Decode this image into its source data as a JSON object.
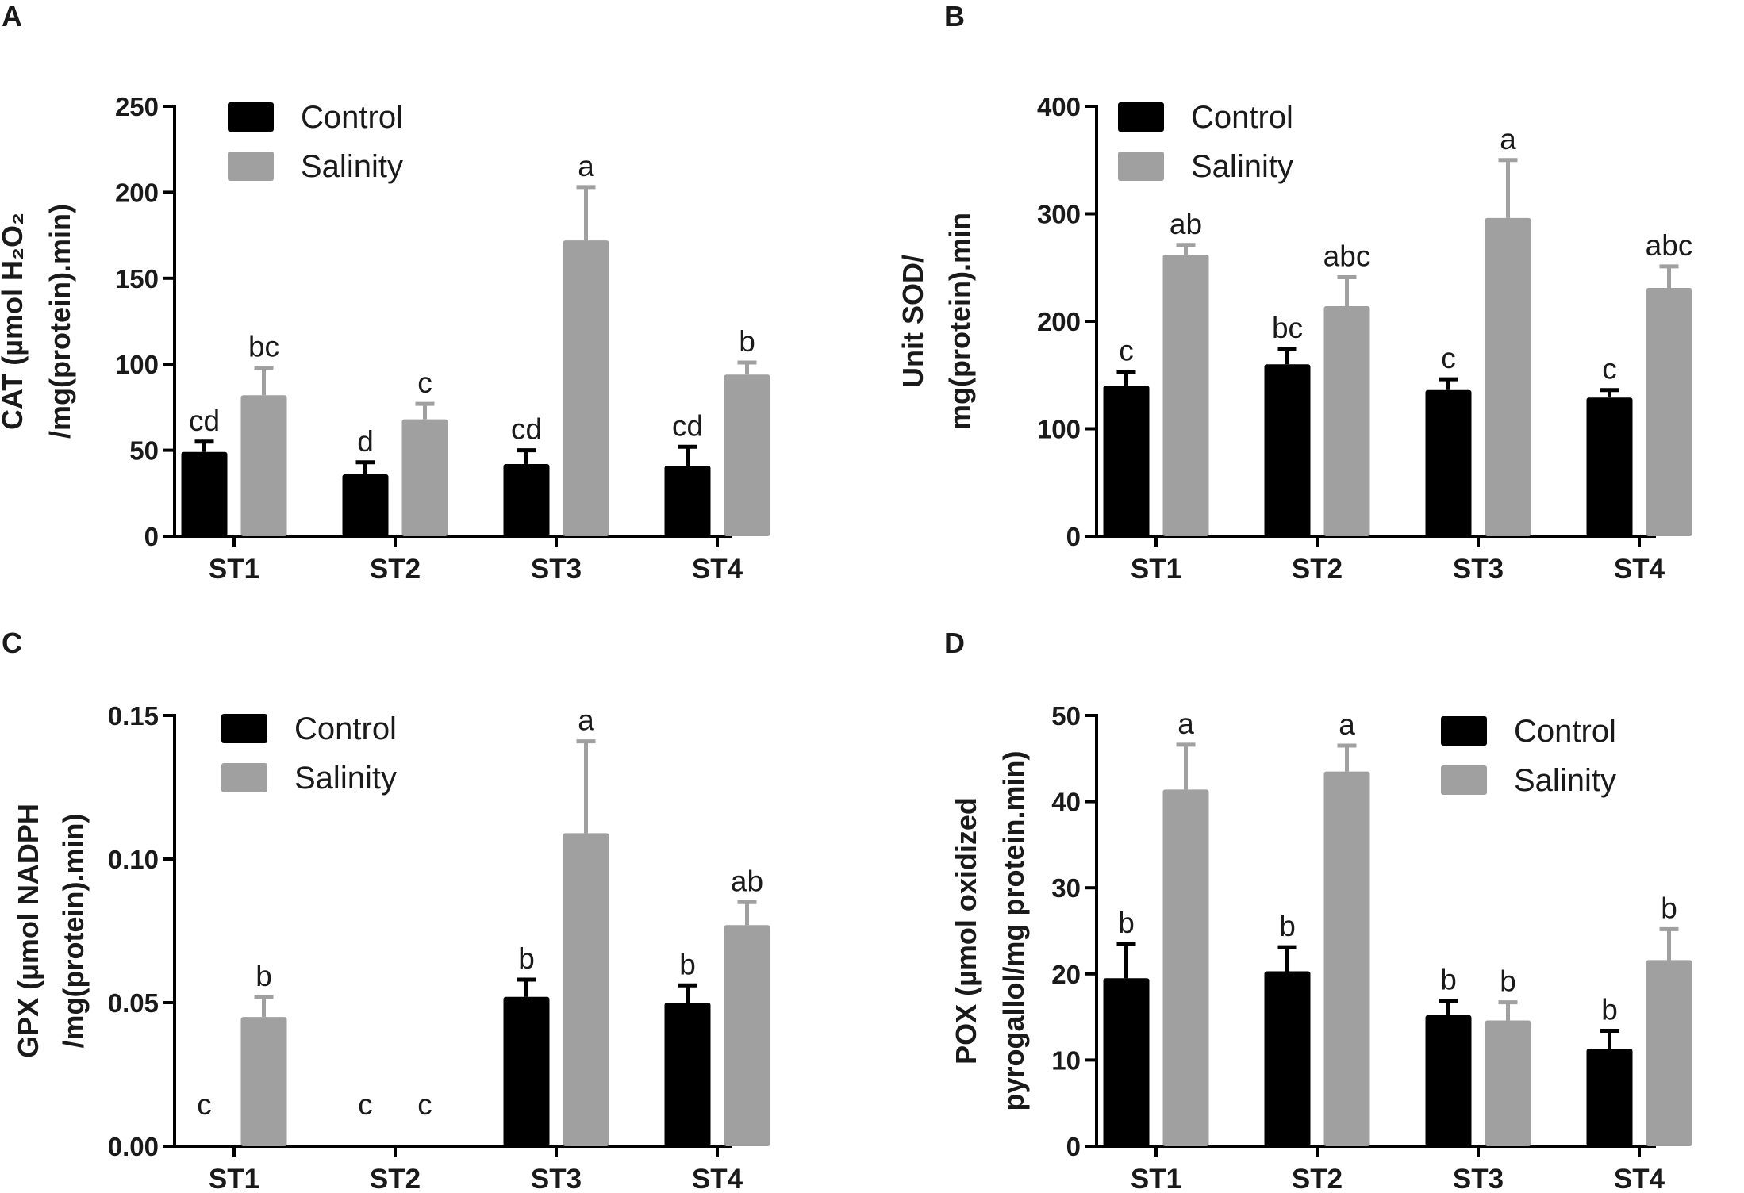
{
  "colors": {
    "control": "#000000",
    "salinity": "#a0a0a0",
    "axis": "#000000"
  },
  "legend": {
    "control": "Control",
    "salinity": "Salinity"
  },
  "chart_data": [
    {
      "panel": "A",
      "type": "bar",
      "ylabel_lines": [
        "CAT (µmol H₂O₂",
        "/mg(protein).min)"
      ],
      "categories": [
        "ST1",
        "ST2",
        "ST3",
        "ST4"
      ],
      "ylim": [
        0,
        250
      ],
      "yticks": [
        0,
        50,
        100,
        150,
        200,
        250
      ],
      "ytick_labels": [
        "0",
        "50",
        "100",
        "150",
        "200",
        "250"
      ],
      "legend_position": "top-left",
      "series": [
        {
          "name": "Control",
          "values": [
            49,
            36,
            42,
            41
          ],
          "errors": [
            6,
            7,
            8,
            11
          ],
          "labels": [
            "cd",
            "d",
            "cd",
            "cd"
          ]
        },
        {
          "name": "Salinity",
          "values": [
            82,
            68,
            172,
            94
          ],
          "errors": [
            16,
            9,
            31,
            7
          ],
          "labels": [
            "bc",
            "c",
            "a",
            "b"
          ]
        }
      ]
    },
    {
      "panel": "B",
      "type": "bar",
      "ylabel_lines": [
        "Unit SOD/",
        "mg(protein).min"
      ],
      "categories": [
        "ST1",
        "ST2",
        "ST3",
        "ST4"
      ],
      "ylim": [
        0,
        400
      ],
      "yticks": [
        0,
        100,
        200,
        300,
        400
      ],
      "ytick_labels": [
        "0",
        "100",
        "200",
        "300",
        "400"
      ],
      "legend_position": "top-left",
      "series": [
        {
          "name": "Control",
          "values": [
            140,
            160,
            136,
            129
          ],
          "errors": [
            13,
            14,
            10,
            7
          ],
          "labels": [
            "c",
            "bc",
            "c",
            "c"
          ]
        },
        {
          "name": "Salinity",
          "values": [
            262,
            214,
            296,
            231
          ],
          "errors": [
            9,
            27,
            54,
            20
          ],
          "labels": [
            "ab",
            "abc",
            "a",
            "abc"
          ]
        }
      ]
    },
    {
      "panel": "C",
      "type": "bar",
      "ylabel_lines": [
        "GPX (µmol NADPH",
        "/mg(protein).min)"
      ],
      "categories": [
        "ST1",
        "ST2",
        "ST3",
        "ST4"
      ],
      "ylim": [
        0,
        0.15
      ],
      "yticks": [
        0,
        0.05,
        0.1,
        0.15
      ],
      "ytick_labels": [
        "0.00",
        "0.05",
        "0.10",
        "0.15"
      ],
      "legend_position": "top-left",
      "series": [
        {
          "name": "Control",
          "values": [
            0,
            0,
            0.052,
            0.05
          ],
          "errors": [
            0,
            0,
            0.006,
            0.006
          ],
          "labels": [
            "c",
            "c",
            "b",
            "b"
          ]
        },
        {
          "name": "Salinity",
          "values": [
            0.045,
            0,
            0.109,
            0.077
          ],
          "errors": [
            0.007,
            0,
            0.032,
            0.008
          ],
          "labels": [
            "b",
            "c",
            "a",
            "ab"
          ]
        }
      ]
    },
    {
      "panel": "D",
      "type": "bar",
      "ylabel_lines": [
        "POX (µmol oxidized",
        "pyrogallol/mg protein.min)"
      ],
      "categories": [
        "ST1",
        "ST2",
        "ST3",
        "ST4"
      ],
      "ylim": [
        0,
        50
      ],
      "yticks": [
        0,
        10,
        20,
        30,
        40,
        50
      ],
      "ytick_labels": [
        "0",
        "10",
        "20",
        "30",
        "40",
        "50"
      ],
      "legend_position": "top-right",
      "series": [
        {
          "name": "Control",
          "values": [
            19.5,
            20.3,
            15.2,
            11.3
          ],
          "errors": [
            4,
            2.8,
            1.7,
            2.1
          ],
          "labels": [
            "b",
            "b",
            "b",
            "b"
          ]
        },
        {
          "name": "Salinity",
          "values": [
            41.4,
            43.5,
            14.6,
            21.6
          ],
          "errors": [
            5.2,
            3,
            2.1,
            3.6
          ],
          "labels": [
            "a",
            "a",
            "b",
            "b"
          ]
        }
      ]
    }
  ]
}
